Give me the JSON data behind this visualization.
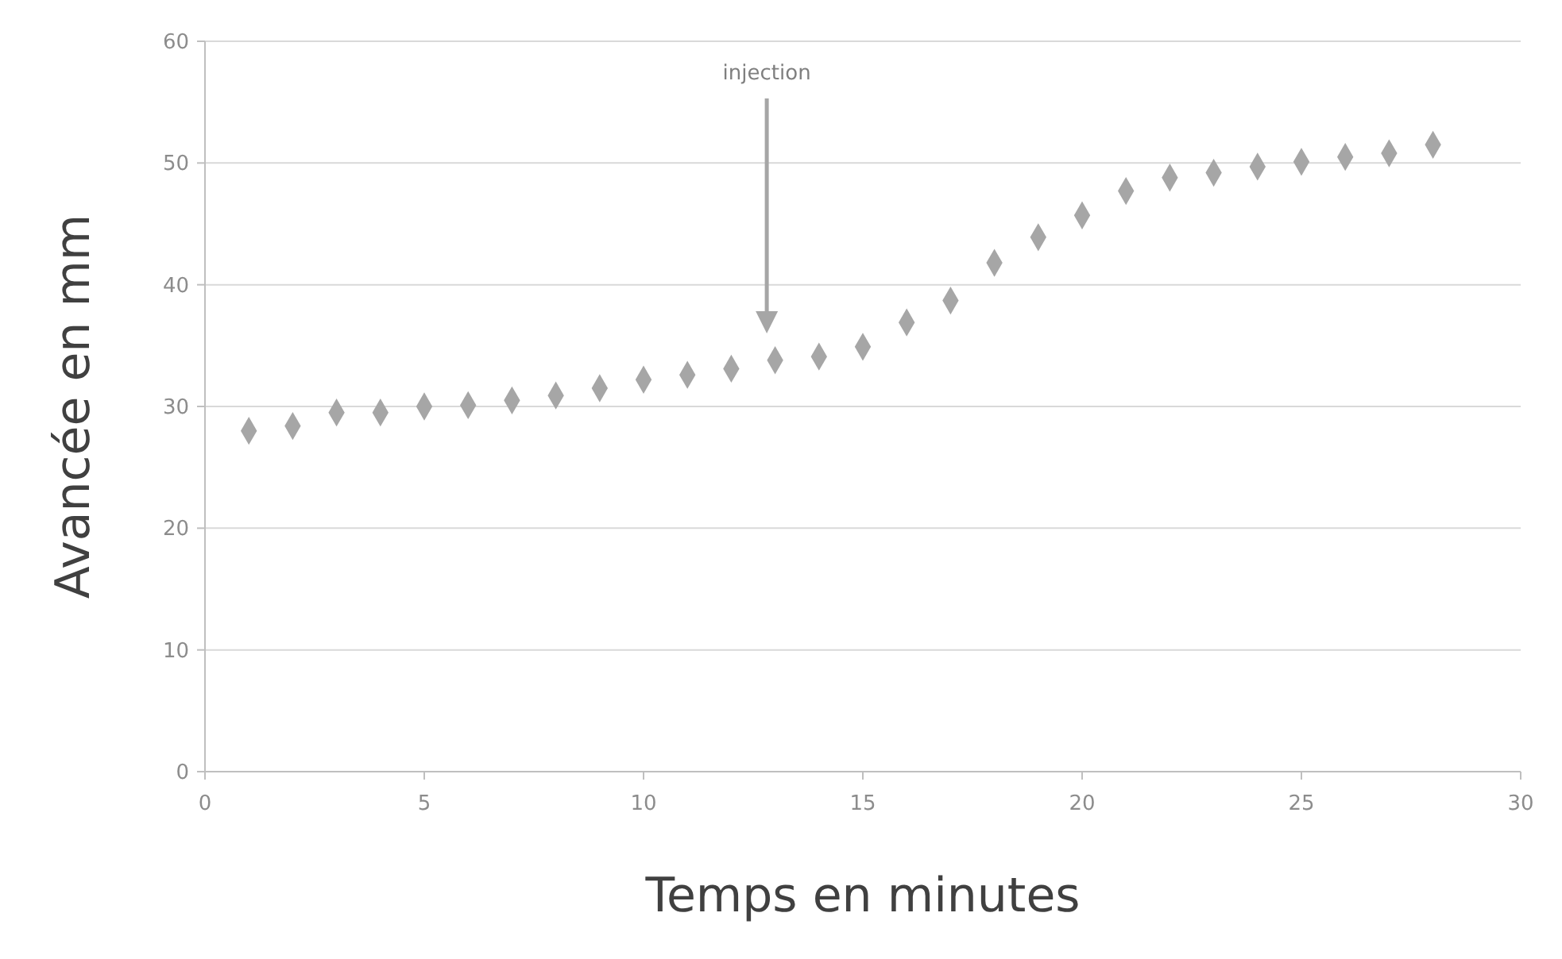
{
  "chart_data": {
    "type": "scatter",
    "xlabel": "Temps en minutes",
    "ylabel": "Avancée en mm",
    "x": [
      1,
      2,
      3,
      4,
      5,
      6,
      7,
      8,
      9,
      10,
      11,
      12,
      13,
      14,
      15,
      16,
      17,
      18,
      19,
      20,
      21,
      22,
      23,
      24,
      25,
      26,
      27,
      28
    ],
    "series": [
      {
        "color": "#a6a6a6",
        "values": [
          28,
          28.4,
          29.5,
          29.5,
          30,
          30.1,
          30.5,
          30.9,
          31.5,
          32.2,
          32.6,
          33.1,
          33.8,
          34.1,
          34.9,
          36.9,
          38.7,
          41.8,
          43.9,
          45.7,
          47.7,
          48.8,
          49.2,
          49.7,
          50.1,
          50.5,
          50.8,
          51.5
        ]
      }
    ],
    "xlim": [
      0,
      30
    ],
    "xticks": [
      0,
      5,
      10,
      15,
      20,
      25,
      30
    ],
    "ylim": [
      0,
      60
    ],
    "yticks": [
      0,
      10,
      20,
      30,
      40,
      50,
      60
    ],
    "grid": "y",
    "marker": "diamond",
    "annotations": [
      "injection"
    ]
  }
}
